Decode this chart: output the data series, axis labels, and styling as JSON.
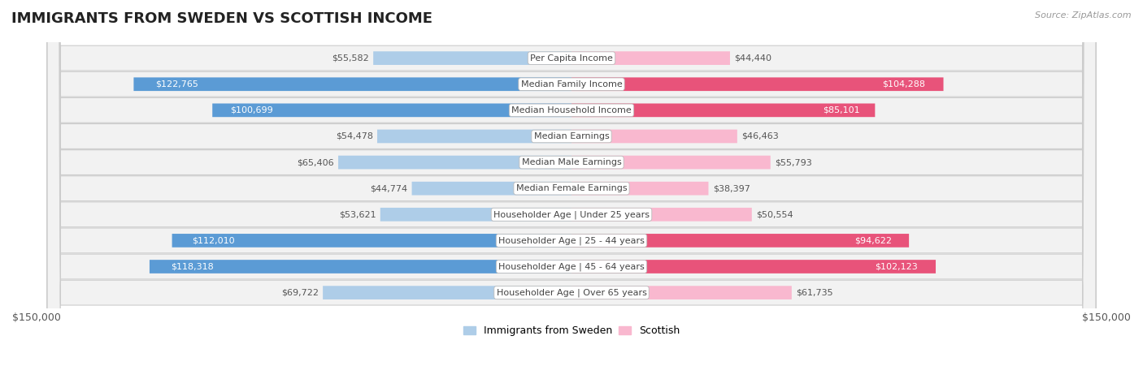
{
  "title": "IMMIGRANTS FROM SWEDEN VS SCOTTISH INCOME",
  "source": "Source: ZipAtlas.com",
  "categories": [
    "Per Capita Income",
    "Median Family Income",
    "Median Household Income",
    "Median Earnings",
    "Median Male Earnings",
    "Median Female Earnings",
    "Householder Age | Under 25 years",
    "Householder Age | 25 - 44 years",
    "Householder Age | 45 - 64 years",
    "Householder Age | Over 65 years"
  ],
  "sweden_values": [
    55582,
    122765,
    100699,
    54478,
    65406,
    44774,
    53621,
    112010,
    118318,
    69722
  ],
  "scottish_values": [
    44440,
    104288,
    85101,
    46463,
    55793,
    38397,
    50554,
    94622,
    102123,
    61735
  ],
  "sweden_color_light": "#aecde8",
  "sweden_color_dark": "#5b9bd5",
  "scottish_color_light": "#f9b8cf",
  "scottish_color_dark": "#e8537a",
  "sweden_label": "Immigrants from Sweden",
  "scottish_label": "Scottish",
  "max_value": 150000,
  "x_tick_label_left": "$150,000",
  "x_tick_label_right": "$150,000",
  "background_color": "#ffffff",
  "title_fontsize": 13,
  "label_fontsize": 8,
  "value_fontsize": 8,
  "legend_fontsize": 9,
  "dark_threshold": 0.5
}
